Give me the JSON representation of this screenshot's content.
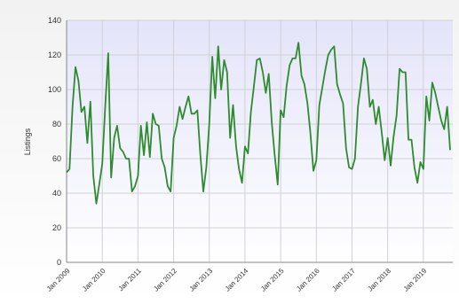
{
  "chart_data": {
    "type": "line",
    "y_label": "Listings",
    "categories": [
      "Jan 2009",
      null,
      null,
      null,
      null,
      null,
      null,
      null,
      null,
      null,
      null,
      null,
      "Jan 2010",
      null,
      null,
      null,
      null,
      null,
      null,
      null,
      null,
      null,
      null,
      null,
      "Jan 2011",
      null,
      null,
      null,
      null,
      null,
      null,
      null,
      null,
      null,
      null,
      null,
      "Jan 2012",
      null,
      null,
      null,
      null,
      null,
      null,
      null,
      null,
      null,
      null,
      null,
      "Jan 2013",
      null,
      null,
      null,
      null,
      null,
      null,
      null,
      null,
      null,
      null,
      null,
      "Jan 2014",
      null,
      null,
      null,
      null,
      null,
      null,
      null,
      null,
      null,
      null,
      null,
      "Jan 2015",
      null,
      null,
      null,
      null,
      null,
      null,
      null,
      null,
      null,
      null,
      null,
      "Jan 2016",
      null,
      null,
      null,
      null,
      null,
      null,
      null,
      null,
      null,
      null,
      null,
      "Jan 2017",
      null,
      null,
      null,
      null,
      null,
      null,
      null,
      null,
      null,
      null,
      null,
      "Jan 2018",
      null,
      null,
      null,
      null,
      null,
      null,
      null,
      null,
      null,
      null,
      null,
      "Jan 2019",
      null,
      null,
      null,
      null,
      null,
      null,
      null,
      null,
      null
    ],
    "values": [
      52,
      54,
      90,
      113,
      105,
      87,
      90,
      69,
      93,
      50,
      34,
      45,
      57,
      90,
      121,
      49,
      72,
      79,
      66,
      64,
      60,
      60,
      41,
      44,
      50,
      79,
      62,
      81,
      61,
      86,
      80,
      79,
      60,
      55,
      44,
      41,
      72,
      79,
      90,
      83,
      90,
      96,
      86,
      86,
      88,
      62,
      41,
      55,
      80,
      119,
      95,
      125,
      100,
      117,
      110,
      72,
      91,
      67,
      54,
      46,
      67,
      63,
      87,
      102,
      117,
      118,
      110,
      98,
      109,
      81,
      62,
      45,
      88,
      84,
      102,
      114,
      118,
      118,
      127,
      108,
      103,
      92,
      75,
      53,
      59,
      91,
      101,
      111,
      120,
      123,
      125,
      103,
      97,
      92,
      66,
      55,
      54,
      60,
      90,
      103,
      118,
      112,
      90,
      94,
      80,
      90,
      75,
      59,
      72,
      56,
      73,
      85,
      112,
      110,
      110,
      71,
      71,
      55,
      46,
      58,
      54,
      96,
      82,
      104,
      98,
      90,
      82,
      77,
      90,
      65
    ],
    "color": "#2e8b2e",
    "ylim": [
      0,
      140
    ],
    "yticks": [
      0,
      20,
      40,
      60,
      80,
      100,
      120,
      140
    ],
    "grid": true
  }
}
